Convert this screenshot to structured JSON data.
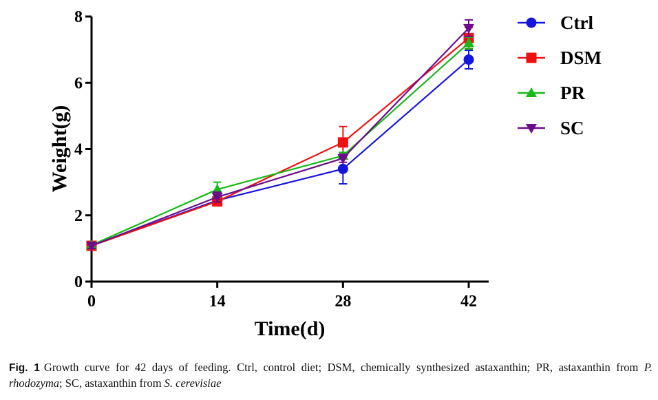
{
  "chart_data": {
    "type": "line",
    "title": "",
    "xlabel": "Time(d)",
    "ylabel": "Weight(g)",
    "x": [
      0,
      14,
      28,
      42
    ],
    "x_tick_labels": [
      "0",
      "14",
      "28",
      "42"
    ],
    "y_ticks": [
      0,
      2,
      4,
      6,
      8
    ],
    "y_tick_labels": [
      "0",
      "2",
      "4",
      "6",
      "8"
    ],
    "xlim": [
      0,
      42
    ],
    "ylim": [
      0,
      8
    ],
    "grid": false,
    "legend_position": "top-right",
    "series": [
      {
        "name": "Ctrl",
        "color": "#1515e0",
        "marker": "circle",
        "values": [
          1.08,
          2.45,
          3.4,
          6.7
        ],
        "errors": [
          0.08,
          0.08,
          0.45,
          0.28
        ]
      },
      {
        "name": "DSM",
        "color": "#ee1111",
        "marker": "square",
        "values": [
          1.08,
          2.42,
          4.2,
          7.35
        ],
        "errors": [
          0.08,
          0.08,
          0.48,
          0.32
        ]
      },
      {
        "name": "PR",
        "color": "#18b818",
        "marker": "triangle-up",
        "values": [
          1.1,
          2.78,
          3.8,
          7.2
        ],
        "errors": [
          0.06,
          0.22,
          0.1,
          0.18
        ]
      },
      {
        "name": "SC",
        "color": "#6c0c8c",
        "marker": "triangle-down",
        "values": [
          1.08,
          2.55,
          3.72,
          7.65
        ],
        "errors": [
          0.08,
          0.15,
          0.12,
          0.25
        ]
      }
    ]
  },
  "caption": {
    "label": "Fig. 1",
    "text_1": "Growth curve for 42 days of feeding. Ctrl, control diet; DSM, chemically synthesized astaxanthin; PR, astaxanthin from ",
    "italic_1": "P. rhodozyma",
    "text_2": "; SC, astaxanthin from ",
    "italic_2": "S. cerevisiae"
  }
}
